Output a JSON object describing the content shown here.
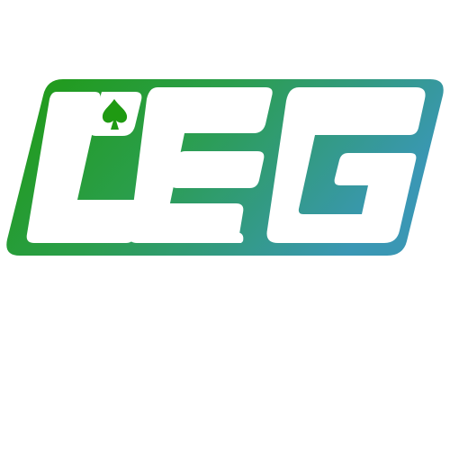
{
  "logo": {
    "wordmark": "L'EG",
    "emblem": "spade-icon",
    "colors": {
      "gradient_start": "#1f9a12",
      "gradient_end": "#3a97b4",
      "letters": "#ffffff",
      "background": "#ffffff"
    }
  }
}
